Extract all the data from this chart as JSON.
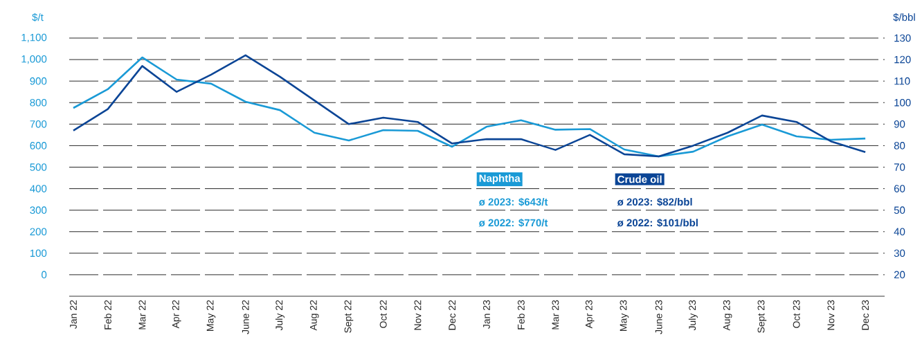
{
  "chart_data": {
    "type": "line",
    "ylabel": "$/t",
    "y2label": "$/bbl",
    "categories": [
      "Jan 22",
      "Feb 22",
      "Mar 22",
      "Apr 22",
      "May 22",
      "June 22",
      "July 22",
      "Aug 22",
      "Sept 22",
      "Oct 22",
      "Nov 22",
      "Dec 22",
      "Jan 23",
      "Feb 23",
      "Mar 23",
      "Apr 23",
      "May 23",
      "June 23",
      "July 23",
      "Aug 23",
      "Sept 23",
      "Oct 23",
      "Nov 23",
      "Dec 23"
    ],
    "series": [
      {
        "name": "Naphtha",
        "color": "#1a9ad6",
        "values": [
          775,
          862,
          1010,
          907,
          888,
          804,
          765,
          660,
          624,
          672,
          669,
          595,
          688,
          718,
          674,
          677,
          582,
          550,
          572,
          643,
          698,
          643,
          627,
          633
        ]
      },
      {
        "name": "Crude oil",
        "color": "#0b4596",
        "axis": "y2",
        "values": [
          87,
          97,
          117,
          105,
          113,
          122,
          112,
          101,
          90,
          93,
          91,
          81,
          83,
          83,
          78,
          85,
          76,
          75,
          80,
          86,
          94,
          91,
          82,
          77
        ]
      }
    ],
    "ylim": [
      -100,
      1100
    ],
    "yticks": [
      0,
      100,
      200,
      300,
      400,
      500,
      600,
      700,
      800,
      900,
      {
        "value": 1000,
        "label": "1,000"
      },
      {
        "value": 1100,
        "label": "1,100"
      }
    ],
    "y2lim": [
      10,
      130
    ],
    "y2ticks": [
      20,
      30,
      40,
      50,
      60,
      70,
      80,
      90,
      100,
      110,
      120,
      130
    ],
    "annotations": [
      "ø 2023: $643/t",
      "ø 2022: $770/t",
      "ø 2023: $82/bbl",
      "ø 2022: $101/bbl"
    ],
    "grid": "y",
    "legend": "bottom",
    "marker": "none",
    "line_style": "solid"
  }
}
